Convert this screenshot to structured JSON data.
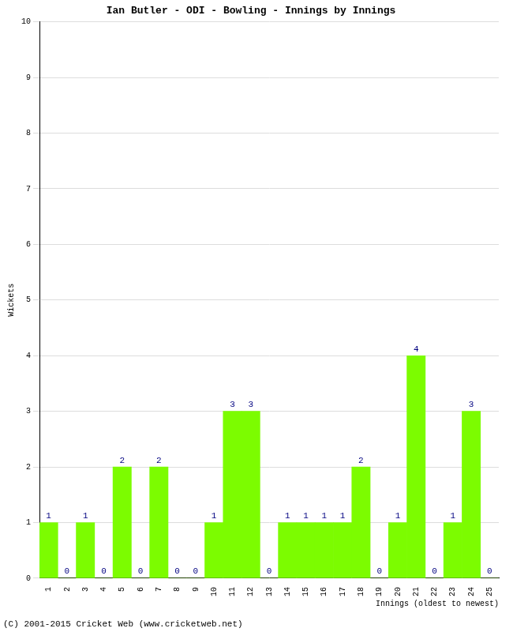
{
  "chart_data": {
    "type": "bar",
    "title": "Ian Butler - ODI - Bowling - Innings by Innings",
    "x_label": "Innings (oldest to newest)",
    "y_label": "Wickets",
    "annotations": [
      "(C) 2001-2015 Cricket Web (www.cricketweb.net)"
    ],
    "categories": [
      "1",
      "2",
      "3",
      "4",
      "5",
      "6",
      "7",
      "8",
      "9",
      "10",
      "11",
      "12",
      "13",
      "14",
      "15",
      "16",
      "17",
      "18",
      "19",
      "20",
      "21",
      "22",
      "23",
      "24",
      "25"
    ],
    "values": [
      1,
      0,
      1,
      0,
      2,
      0,
      2,
      0,
      0,
      1,
      3,
      3,
      0,
      1,
      1,
      1,
      1,
      2,
      0,
      1,
      4,
      0,
      1,
      3,
      0
    ],
    "color": "#7cfc00",
    "ylim": [
      0,
      10
    ],
    "yticks": [
      0,
      1,
      2,
      3,
      4,
      5,
      6,
      7,
      8,
      9,
      10
    ],
    "grid": true,
    "data_labels": true
  }
}
